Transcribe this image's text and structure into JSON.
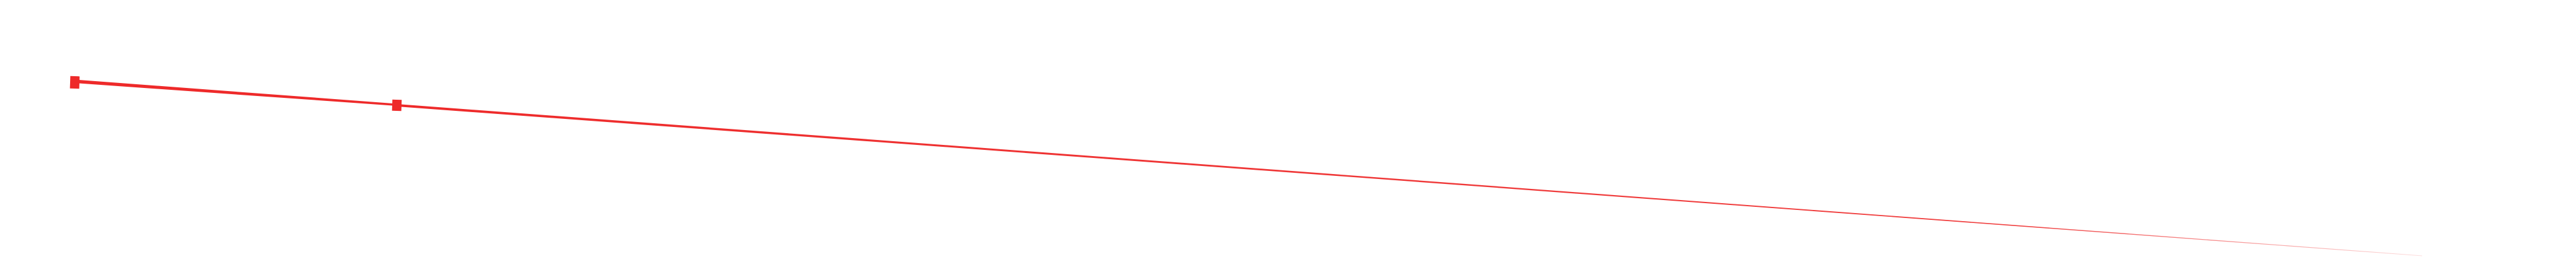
{
  "stroke": {
    "color": "#ee2a2a",
    "style": "tapered-line",
    "markers": "square"
  }
}
